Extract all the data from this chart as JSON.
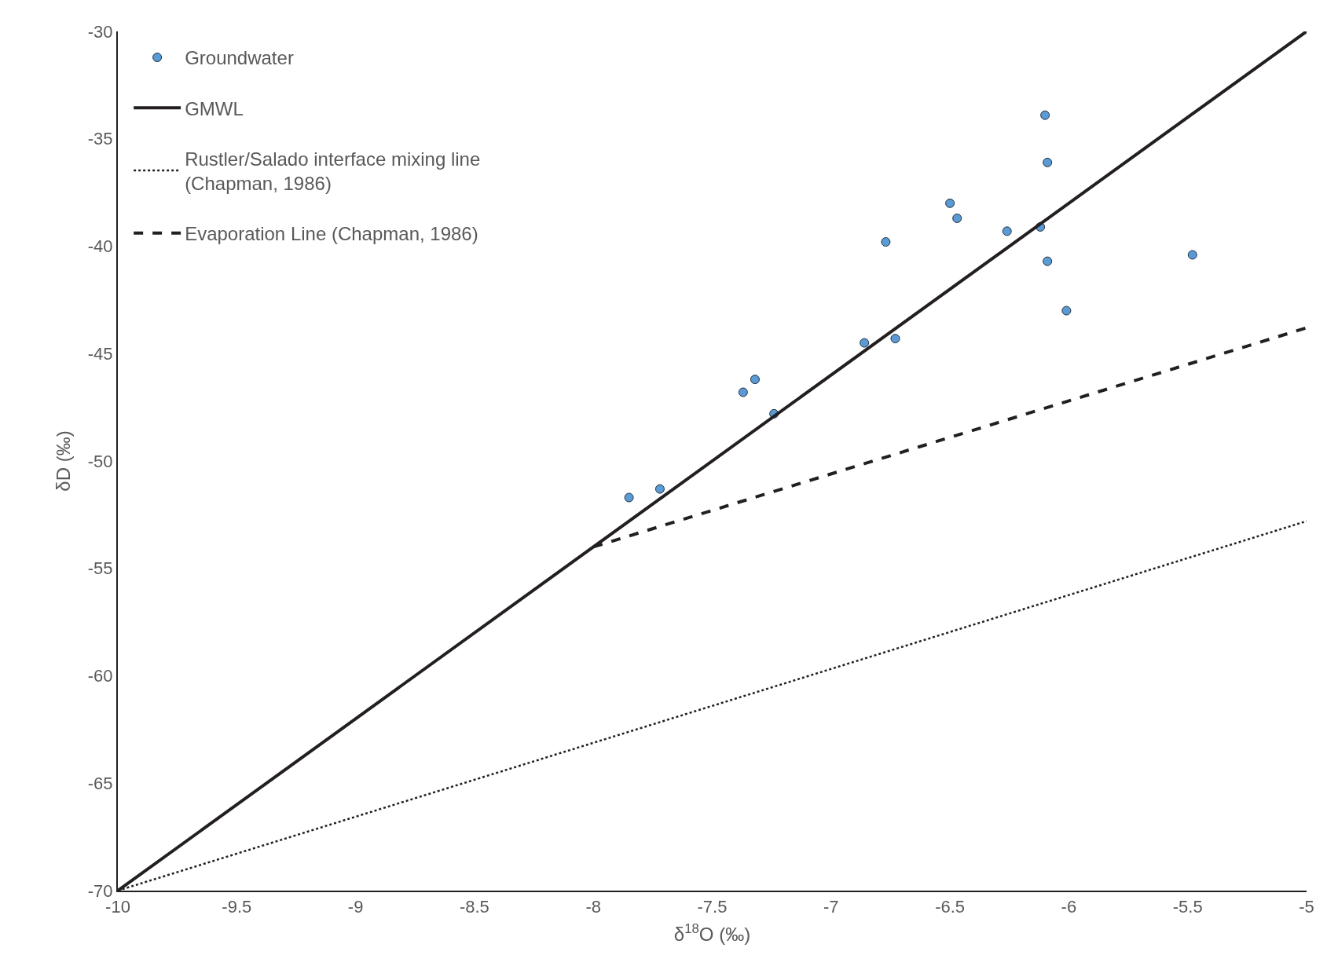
{
  "chart_data": {
    "type": "scatter",
    "xlabel": "δ$^{18}$O (‰)",
    "ylabel": "δD (‰)",
    "xlim": [
      -10,
      -5
    ],
    "xticks": [
      -10,
      -9.5,
      -9,
      -8.5,
      -8,
      -7.5,
      -7,
      -6.5,
      -6,
      -5.5,
      -5
    ],
    "ylim": [
      -70,
      -30
    ],
    "yticks": [
      -70,
      -65,
      -60,
      -55,
      -50,
      -45,
      -40,
      -35,
      -30
    ],
    "legend": "top left",
    "series": [
      {
        "name": "Groundwater",
        "marker": "circle",
        "color": "#5b9bd5",
        "x": [
          -7.85,
          -7.72,
          -7.37,
          -7.32,
          -7.24,
          -6.86,
          -6.73,
          -6.77,
          -6.5,
          -6.47,
          -6.26,
          -6.12,
          -6.1,
          -6.09,
          -6.09,
          -6.01,
          -5.48
        ],
        "values": [
          -51.7,
          -51.3,
          -46.8,
          -46.2,
          -47.8,
          -44.5,
          -44.3,
          -39.8,
          -38.0,
          -38.7,
          -39.3,
          -39.1,
          -33.9,
          -36.1,
          -40.7,
          -43.0,
          -40.4
        ]
      },
      {
        "name": "GMWL",
        "type": "line",
        "line_style": "solid",
        "color": "#231f20",
        "x": [
          -10,
          -5
        ],
        "values": [
          -70,
          -30
        ]
      },
      {
        "name": "Rustler/Salado interface mixing line\n(Chapman, 1986)",
        "type": "line",
        "line_style": "dotted",
        "color": "#231f20",
        "x": [
          -10,
          -5
        ],
        "values": [
          -70,
          -52.8
        ]
      },
      {
        "name": "Evaporation Line (Chapman, 1986)",
        "type": "line",
        "line_style": "dashed",
        "color": "#231f20",
        "x": [
          -8,
          -5
        ],
        "values": [
          -54,
          -43.8
        ]
      }
    ]
  }
}
